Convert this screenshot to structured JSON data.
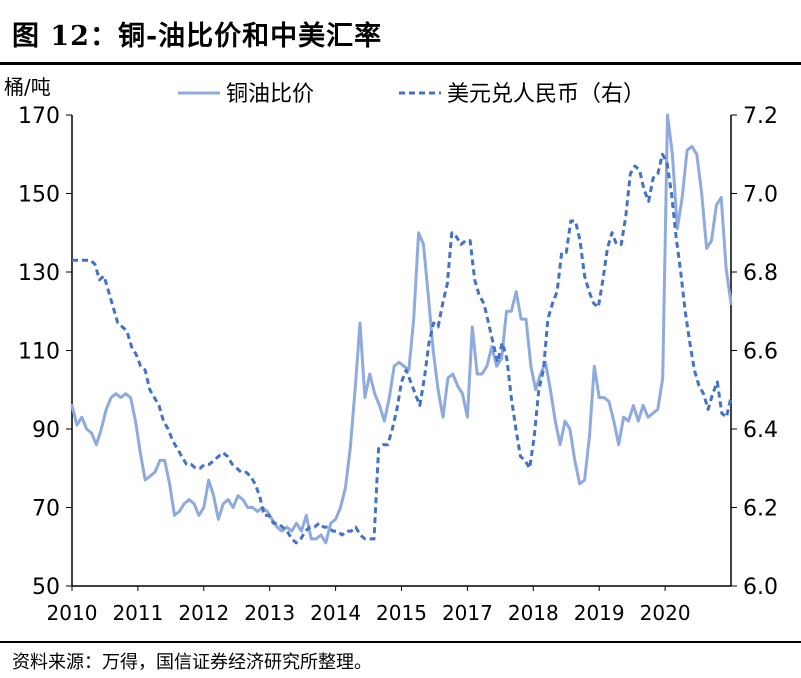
{
  "header": {
    "title": "图 12：铜-油比价和中美汇率"
  },
  "footer": {
    "source": "资料来源：万得，国信证券经济研究所整理。"
  },
  "chart_data": {
    "type": "line",
    "left_unit": "桶/吨",
    "ylim": [
      50,
      170
    ],
    "y_ticks": [
      170,
      150,
      130,
      110,
      90,
      70,
      50
    ],
    "y2lim": [
      6.0,
      7.2
    ],
    "y2_ticks": [
      "7.2",
      "7.0",
      "6.8",
      "6.6",
      "6.4",
      "6.2",
      "6.0"
    ],
    "x_ticks": [
      "2010",
      "2011",
      "2012",
      "2013",
      "2014",
      "2015",
      "2017",
      "2018",
      "2019",
      "2020"
    ],
    "legend_position": "top",
    "colors": {
      "copper_oil": "#8faadc",
      "usdcny": "#4472c4"
    },
    "series": [
      {
        "name": "铜油比价",
        "axis": "left",
        "style": "solid",
        "values": [
          96,
          91,
          93,
          90,
          89,
          86,
          90,
          95,
          98,
          99,
          98,
          99,
          98,
          92,
          84,
          77,
          78,
          79,
          82,
          82,
          76,
          68,
          69,
          71,
          72,
          71,
          68,
          70,
          77,
          73,
          67,
          71,
          72,
          70,
          73,
          72,
          70,
          70,
          69,
          70,
          69,
          67,
          65,
          64,
          65,
          64,
          66,
          64,
          68,
          62,
          62,
          63,
          61,
          66,
          67,
          70,
          75,
          85,
          100,
          117,
          98,
          104,
          99,
          96,
          92,
          98,
          106,
          107,
          106,
          105,
          118,
          140,
          137,
          124,
          110,
          100,
          93,
          103,
          104,
          101,
          99,
          93,
          116,
          104,
          104,
          106,
          111,
          106,
          108,
          120,
          120,
          125,
          118,
          118,
          106,
          100,
          104,
          107,
          100,
          92,
          86,
          92,
          90,
          82,
          76,
          77,
          88,
          106,
          98,
          98,
          97,
          92,
          86,
          93,
          92,
          96,
          92,
          96,
          93,
          94,
          95,
          103,
          172,
          160,
          141,
          149,
          161,
          162,
          160,
          150,
          136,
          138,
          147,
          149,
          131,
          122
        ]
      },
      {
        "name": "美元兑人民币（右）",
        "axis": "right",
        "style": "dashed",
        "values": [
          6.83,
          6.83,
          6.83,
          6.83,
          6.83,
          6.82,
          6.78,
          6.79,
          6.75,
          6.71,
          6.67,
          6.66,
          6.65,
          6.61,
          6.59,
          6.56,
          6.55,
          6.5,
          6.48,
          6.46,
          6.42,
          6.4,
          6.37,
          6.35,
          6.33,
          6.31,
          6.31,
          6.3,
          6.3,
          6.31,
          6.31,
          6.32,
          6.33,
          6.34,
          6.33,
          6.31,
          6.3,
          6.29,
          6.29,
          6.28,
          6.26,
          6.23,
          6.18,
          6.18,
          6.16,
          6.16,
          6.15,
          6.14,
          6.12,
          6.11,
          6.12,
          6.14,
          6.15,
          6.15,
          6.16,
          6.15,
          6.15,
          6.14,
          6.14,
          6.13,
          6.14,
          6.14,
          6.15,
          6.13,
          6.12,
          6.12,
          6.12,
          6.35,
          6.36,
          6.36,
          6.4,
          6.45,
          6.52,
          6.55,
          6.52,
          6.49,
          6.46,
          6.53,
          6.62,
          6.67,
          6.66,
          6.72,
          6.77,
          6.9,
          6.89,
          6.87,
          6.88,
          6.88,
          6.78,
          6.74,
          6.72,
          6.67,
          6.62,
          6.57,
          6.62,
          6.58,
          6.48,
          6.4,
          6.33,
          6.32,
          6.3,
          6.38,
          6.5,
          6.55,
          6.68,
          6.72,
          6.75,
          6.85,
          6.85,
          6.93,
          6.93,
          6.88,
          6.79,
          6.75,
          6.72,
          6.71,
          6.78,
          6.86,
          6.9,
          6.87,
          6.87,
          6.94,
          7.05,
          7.07,
          7.06,
          7.01,
          6.98,
          7.04,
          7.05,
          7.1,
          7.08,
          7.0,
          6.89,
          6.8,
          6.7,
          6.62,
          6.55,
          6.51,
          6.49,
          6.45,
          6.49,
          6.52,
          6.44,
          6.43,
          6.48
        ]
      }
    ]
  }
}
